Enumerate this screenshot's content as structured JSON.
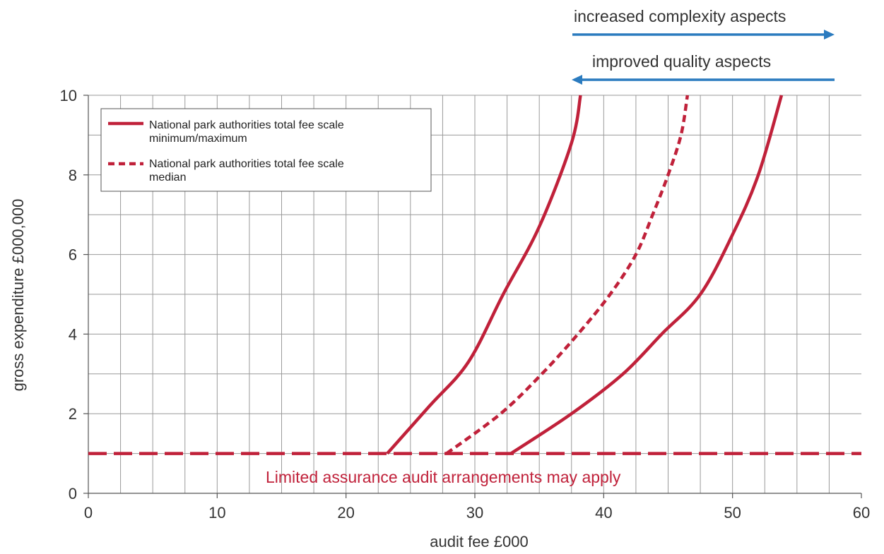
{
  "chart_data": {
    "type": "line",
    "xlabel": "audit fee £000",
    "ylabel": "gross expenditure £000,000",
    "xlim": [
      0,
      60
    ],
    "ylim": [
      0,
      10
    ],
    "x_ticks": [
      0,
      10,
      20,
      30,
      40,
      50,
      60
    ],
    "y_ticks": [
      0,
      2,
      4,
      6,
      8,
      10
    ],
    "grid": true,
    "x_minor_step": 2.5,
    "y_minor_step": 1,
    "legend": {
      "placement": "top-left",
      "entries": [
        {
          "line1": "National park authorities total fee scale",
          "line2": "minimum/maximum",
          "style": "solid"
        },
        {
          "line1": "National park authorities total fee scale",
          "line2": "median",
          "style": "dashed"
        }
      ]
    },
    "series": [
      {
        "role": "minimum",
        "style": "solid",
        "color": "#c0213a",
        "points": [
          [
            23.2,
            1.0
          ],
          [
            26.5,
            2.2
          ],
          [
            29.5,
            3.3
          ],
          [
            32.2,
            5.0
          ],
          [
            35.0,
            6.7
          ],
          [
            37.5,
            8.8
          ],
          [
            38.2,
            10.0
          ]
        ]
      },
      {
        "role": "median",
        "style": "dashed",
        "color": "#c0213a",
        "points": [
          [
            27.8,
            1.0
          ],
          [
            32.0,
            2.0
          ],
          [
            35.2,
            3.0
          ],
          [
            38.0,
            4.0
          ],
          [
            40.5,
            5.0
          ],
          [
            42.5,
            6.0
          ],
          [
            43.8,
            7.0
          ],
          [
            45.0,
            8.0
          ],
          [
            46.0,
            9.0
          ],
          [
            46.5,
            10.0
          ]
        ]
      },
      {
        "role": "maximum",
        "style": "solid",
        "color": "#c0213a",
        "points": [
          [
            32.8,
            1.0
          ],
          [
            37.5,
            2.0
          ],
          [
            41.5,
            3.0
          ],
          [
            44.5,
            4.0
          ],
          [
            47.5,
            5.0
          ],
          [
            50.0,
            6.5
          ],
          [
            52.0,
            8.0
          ],
          [
            53.8,
            10.0
          ]
        ]
      },
      {
        "role": "limited-assurance-threshold",
        "style": "long-dash",
        "color": "#c0213a",
        "points": [
          [
            0,
            1.0
          ],
          [
            60,
            1.0
          ]
        ]
      }
    ],
    "annotations": {
      "threshold_label": "Limited assurance audit arrangements may apply",
      "arrow_right_label": "increased complexity aspects",
      "arrow_left_label": "improved quality aspects",
      "arrow_color": "#2b7bbf"
    }
  }
}
